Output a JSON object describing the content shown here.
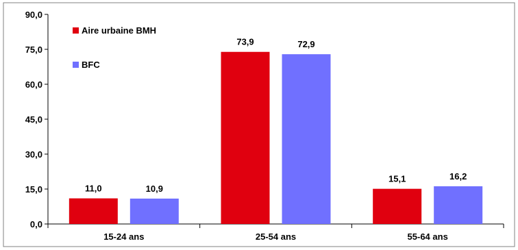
{
  "chart_data": {
    "type": "bar",
    "categories": [
      "15-24 ans",
      "25-54 ans",
      "55-64 ans"
    ],
    "series": [
      {
        "name": "Aire urbaine BMH",
        "values": [
          11.0,
          73.9,
          15.1
        ],
        "value_labels": [
          "11,0",
          "73,9",
          "15,1"
        ],
        "color": "#e0000f"
      },
      {
        "name": "BFC",
        "values": [
          10.9,
          72.9,
          16.2
        ],
        "value_labels": [
          "10,9",
          "72,9",
          "16,2"
        ],
        "color": "#7070ff"
      }
    ],
    "ylim": [
      0,
      90
    ],
    "yticks": [
      0,
      15,
      30,
      45,
      60,
      75,
      90
    ],
    "ytick_labels": [
      "0,0",
      "15,0",
      "30,0",
      "45,0",
      "60,0",
      "75,0",
      "90,0"
    ],
    "grid": false,
    "legend_position": "top-left"
  }
}
